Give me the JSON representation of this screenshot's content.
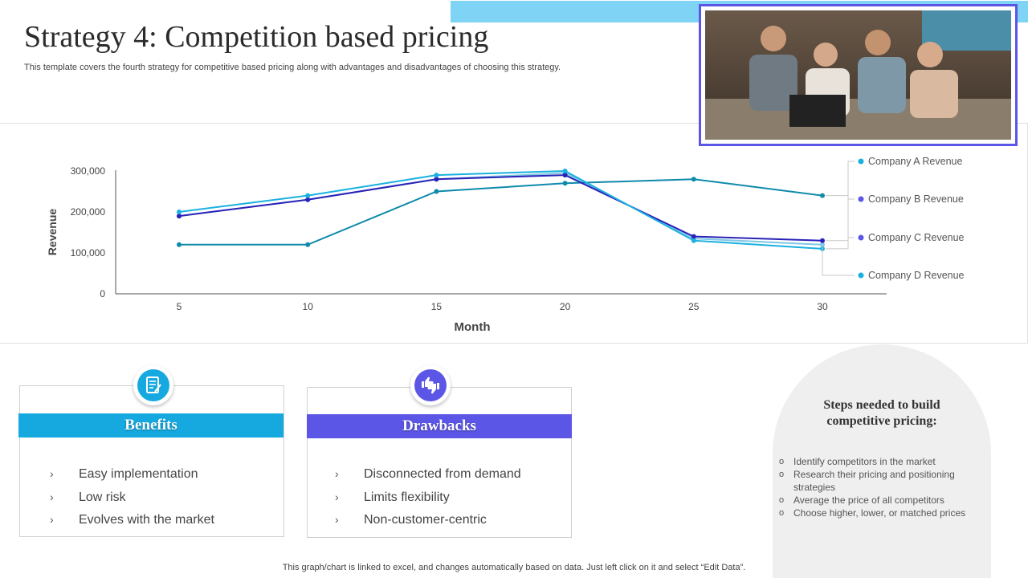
{
  "header": {
    "title": "Strategy 4: Competition based pricing",
    "subtitle": "This template covers the fourth strategy for competitive based pricing along with advantages and disadvantages of choosing this strategy."
  },
  "chart_data": {
    "type": "line",
    "xlabel": "Month",
    "ylabel": "Revenue",
    "x": [
      5,
      10,
      15,
      20,
      25,
      30
    ],
    "ylim": [
      0,
      300000
    ],
    "yticks": [
      "0",
      "100,000",
      "200,000",
      "300,000"
    ],
    "grid": false,
    "legend_position": "right",
    "series": [
      {
        "name": "Company A Revenue",
        "color": "#1ab0e0",
        "values": [
          200000,
          240000,
          290000,
          300000,
          130000,
          110000
        ]
      },
      {
        "name": "Company B Revenue",
        "color": "#2a22b8",
        "values": [
          190000,
          230000,
          280000,
          290000,
          140000,
          130000
        ]
      },
      {
        "name": "Company C Revenue",
        "color": "#0e8aab",
        "values": [
          120000,
          120000,
          250000,
          270000,
          280000,
          240000
        ]
      },
      {
        "name": "Company D Revenue",
        "color": "#7ec8e3",
        "values": [
          190000,
          230000,
          280000,
          295000,
          135000,
          120000
        ]
      }
    ],
    "legend_dot_colors": [
      "#1ab0e0",
      "#5b56e6",
      "#5b56e6",
      "#1ab0e0"
    ]
  },
  "benefits": {
    "title": "Benefits",
    "accent": "#16a9e0",
    "icon": "document-edit-icon",
    "items": [
      "Easy implementation",
      "Low risk",
      "Evolves with the market"
    ]
  },
  "drawbacks": {
    "title": "Drawbacks",
    "accent": "#5b56e6",
    "icon": "thumbs-up-down-icon",
    "items": [
      "Disconnected from demand",
      "Limits flexibility",
      "Non-customer-centric"
    ]
  },
  "steps": {
    "title": "Steps needed to build competitive pricing:",
    "items": [
      "Identify competitors in the market",
      "Research their pricing and positioning strategies",
      "Average  the price of all competitors",
      "Choose higher, lower, or matched prices"
    ]
  },
  "footer": "This graph/chart is linked to excel,  and changes automatically based on data. Just left click on it and select “Edit Data”."
}
